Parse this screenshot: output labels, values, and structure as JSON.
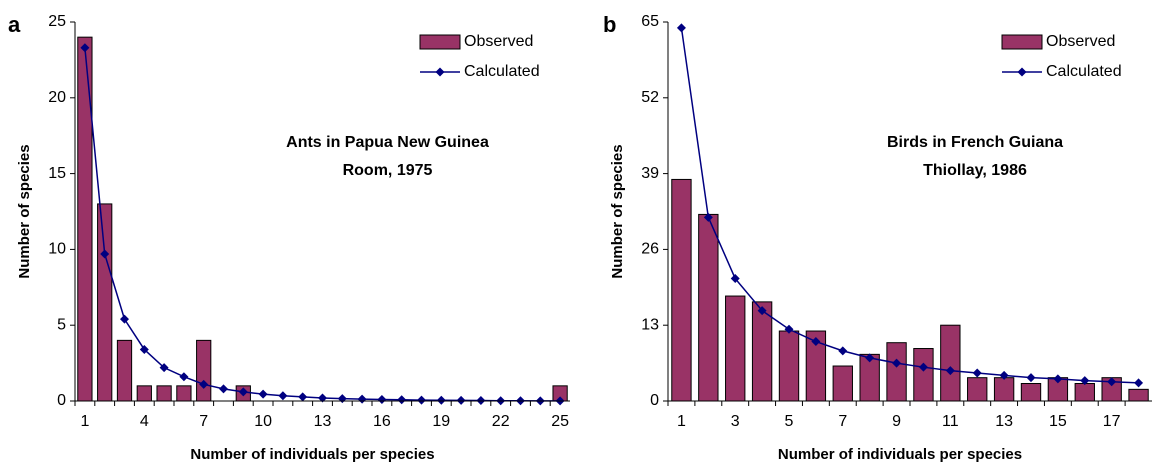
{
  "chart_data": [
    {
      "type": "bar",
      "panel_label": "a",
      "annotation": [
        "Ants in Papua New Guinea",
        "Room, 1975"
      ],
      "xlabel": "Number of individuals per species",
      "ylabel": "Number of species",
      "categories": [
        1,
        null,
        null,
        4,
        null,
        null,
        7,
        null,
        null,
        10,
        null,
        null,
        13,
        null,
        null,
        16,
        null,
        null,
        19,
        null,
        null,
        22,
        null,
        null,
        25
      ],
      "series": [
        {
          "name": "Observed",
          "type": "bar",
          "color": "#993366",
          "values": [
            24,
            13,
            4,
            1,
            1,
            1,
            4,
            0,
            1,
            0,
            0,
            0,
            0,
            0,
            0,
            0,
            0,
            0,
            0,
            0,
            0,
            0,
            0,
            0,
            1
          ]
        },
        {
          "name": "Calculated",
          "type": "line",
          "color": "#000080",
          "values": [
            23.3,
            9.7,
            5.4,
            3.4,
            2.2,
            1.6,
            1.1,
            0.8,
            0.6,
            0.45,
            0.35,
            0.27,
            0.2,
            0.16,
            0.12,
            0.1,
            0.08,
            0.06,
            0.05,
            0.04,
            0.03,
            0.02,
            0.02,
            0.01,
            0.01
          ]
        }
      ],
      "ylim": [
        0,
        25
      ],
      "yticks": [
        0,
        5,
        10,
        15,
        20,
        25
      ],
      "legend": "upper right"
    },
    {
      "type": "bar",
      "panel_label": "b",
      "annotation": [
        "Birds in French Guiana",
        "Thiollay, 1986"
      ],
      "xlabel": "Number of individuals per species",
      "ylabel": "Number of species",
      "categories": [
        1,
        null,
        3,
        null,
        5,
        null,
        7,
        null,
        9,
        null,
        11,
        null,
        13,
        null,
        15,
        null,
        17,
        null
      ],
      "series": [
        {
          "name": "Observed",
          "type": "bar",
          "color": "#993366",
          "values": [
            38,
            32,
            18,
            17,
            12,
            12,
            6,
            8,
            10,
            9,
            13,
            4,
            4,
            3,
            4,
            3,
            4,
            2
          ]
        },
        {
          "name": "Calculated",
          "type": "line",
          "color": "#000080",
          "values": [
            64,
            31.5,
            21,
            15.5,
            12.3,
            10.2,
            8.6,
            7.4,
            6.5,
            5.8,
            5.2,
            4.8,
            4.4,
            4,
            3.8,
            3.5,
            3.3,
            3.1
          ]
        }
      ],
      "ylim": [
        0,
        65
      ],
      "yticks": [
        0,
        13,
        26,
        39,
        52,
        65
      ],
      "legend": "upper right"
    }
  ]
}
